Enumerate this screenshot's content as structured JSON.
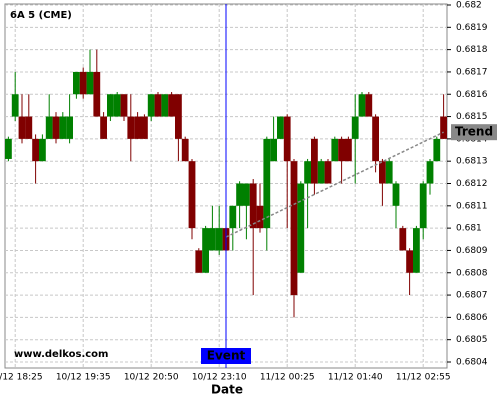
{
  "chart_data": {
    "type": "candlestick",
    "title": "6A 5 (CME)",
    "watermark": "www.delkos.com",
    "x_label": "Date",
    "categories": [
      null,
      "10/12 18:25",
      null,
      null,
      null,
      null,
      null,
      null,
      null,
      null,
      null,
      "10/12 19:35",
      null,
      null,
      null,
      null,
      null,
      null,
      null,
      null,
      null,
      "10/12 20:50",
      null,
      null,
      null,
      null,
      null,
      null,
      null,
      null,
      null,
      "10/12 23:10",
      null,
      null,
      null,
      null,
      null,
      null,
      null,
      null,
      null,
      "11/12 00:25",
      null,
      null,
      null,
      null,
      null,
      null,
      null,
      null,
      null,
      "11/12 01:40",
      null,
      null,
      null,
      null,
      null,
      null,
      null,
      null,
      null,
      "11/12 02:55",
      null,
      null,
      null
    ],
    "open": [
      0.68131,
      0.6815,
      0.6815,
      0.6815,
      0.6814,
      0.6813,
      0.6814,
      0.6815,
      0.6814,
      0.6814,
      0.6816,
      0.6817,
      0.6816,
      0.6817,
      0.6815,
      0.6815,
      0.6815,
      0.6816,
      0.6815,
      0.6815,
      0.6815,
      0.6815,
      0.6816,
      0.6815,
      0.6816,
      0.6816,
      0.6814,
      0.6813,
      0.6809,
      0.6808,
      0.6809,
      0.6809,
      0.681,
      0.681,
      0.6811,
      0.6811,
      0.6812,
      0.6811,
      0.681,
      0.6813,
      0.6814,
      0.6815,
      0.6813,
      0.6808,
      0.6812,
      0.6814,
      0.6812,
      0.6813,
      0.6813,
      0.6814,
      0.6814,
      0.6814,
      0.6815,
      0.6816,
      0.6815,
      0.6813,
      0.6812,
      0.6811,
      0.681,
      0.6809,
      0.6808,
      0.681,
      0.6812,
      0.6813,
      0.6815
    ],
    "high": [
      0.68141,
      0.6817,
      0.6816,
      0.6816,
      0.68142,
      0.68142,
      0.6816,
      0.68152,
      0.68152,
      0.6816,
      0.6817,
      0.68172,
      0.6818,
      0.6818,
      0.68152,
      0.6816,
      0.68161,
      0.6816,
      0.6816,
      0.68152,
      0.68151,
      0.6816,
      0.68161,
      0.6816,
      0.68161,
      0.6816,
      0.68141,
      0.68131,
      0.68091,
      0.68101,
      0.6811,
      0.6811,
      0.68102,
      0.6811,
      0.68121,
      0.6812,
      0.68122,
      0.6812,
      0.68141,
      0.6815,
      0.6815,
      0.68151,
      0.68131,
      0.68121,
      0.68131,
      0.68141,
      0.68131,
      0.68131,
      0.68141,
      0.68141,
      0.68141,
      0.6816,
      0.68161,
      0.68161,
      0.68151,
      0.68131,
      0.68131,
      0.68121,
      0.68101,
      0.68091,
      0.68101,
      0.68121,
      0.68131,
      0.68141,
      0.6816
    ],
    "low": [
      0.6813,
      0.68148,
      0.68138,
      0.6814,
      0.6812,
      0.6813,
      0.6814,
      0.68138,
      0.6814,
      0.68138,
      0.68158,
      0.68158,
      0.6816,
      0.6815,
      0.6814,
      0.68148,
      0.6815,
      0.68148,
      0.6813,
      0.6814,
      0.6814,
      0.68148,
      0.6815,
      0.6815,
      0.6815,
      0.6813,
      0.6813,
      0.68095,
      0.6808,
      0.6808,
      0.6809,
      0.68088,
      0.6809,
      0.6809,
      0.681,
      0.68095,
      0.6807,
      0.68098,
      0.6809,
      0.6813,
      0.6814,
      0.681,
      0.6806,
      0.6808,
      0.681,
      0.68115,
      0.6812,
      0.6812,
      0.6813,
      0.6812,
      0.6813,
      0.6812,
      0.6815,
      0.6815,
      0.68125,
      0.6811,
      0.6812,
      0.681,
      0.6809,
      0.6807,
      0.6808,
      0.68095,
      0.68115,
      0.6813,
      0.6814
    ],
    "close": [
      0.6814,
      0.6816,
      0.6814,
      0.6814,
      0.6813,
      0.6814,
      0.6815,
      0.6814,
      0.6815,
      0.6815,
      0.6817,
      0.6816,
      0.6817,
      0.6815,
      0.6814,
      0.6816,
      0.6816,
      0.6815,
      0.6814,
      0.6814,
      0.6814,
      0.6816,
      0.6815,
      0.6816,
      0.6815,
      0.6814,
      0.6813,
      0.681,
      0.6808,
      0.681,
      0.681,
      0.681,
      0.6809,
      0.6811,
      0.6812,
      0.6812,
      0.681,
      0.681,
      0.6814,
      0.6814,
      0.6815,
      0.6813,
      0.6807,
      0.6812,
      0.6813,
      0.6812,
      0.6813,
      0.6812,
      0.6814,
      0.6813,
      0.6813,
      0.6815,
      0.6816,
      0.6815,
      0.6813,
      0.6812,
      0.6813,
      0.6812,
      0.6809,
      0.6808,
      0.681,
      0.6812,
      0.6813,
      0.6814,
      0.6814
    ],
    "up_color": "#008000",
    "down_color": "#800000",
    "ylim": [
      0.6804,
      0.682
    ],
    "yticks": [
      0.6804,
      0.6805,
      0.6806,
      0.6807,
      0.6808,
      0.6809,
      0.681,
      0.6811,
      0.6812,
      0.6813,
      0.6814,
      0.6815,
      0.6816,
      0.6817,
      0.6818,
      0.6819,
      0.682
    ],
    "grid": true,
    "event": {
      "label": "Event",
      "x": 32,
      "color": "#0000ff"
    },
    "trend": {
      "label": "Trend",
      "start": [
        32,
        0.68096
      ],
      "end": [
        64,
        0.68143
      ]
    }
  }
}
